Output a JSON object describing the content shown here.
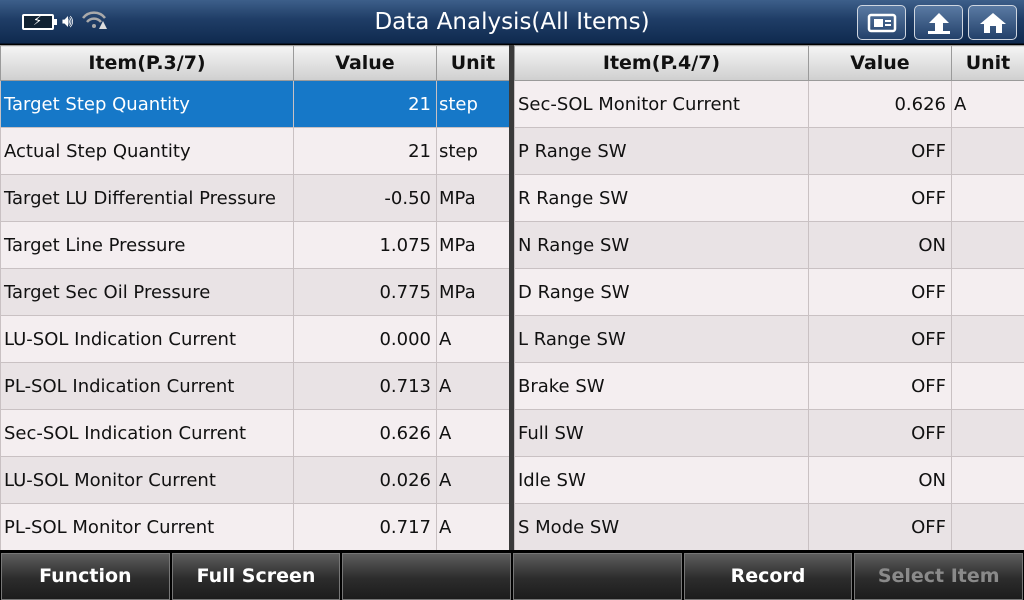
{
  "title": "Data Analysis(All Items)",
  "status_icons": [
    "battery-icon",
    "speaker-icon",
    "wifi-warning-icon"
  ],
  "toolbar_icons": [
    "screenshot-icon",
    "back-icon",
    "home-icon"
  ],
  "left_table": {
    "headers": {
      "item": "Item(P.3/7)",
      "value": "Value",
      "unit": "Unit"
    },
    "rows": [
      {
        "item": "Target Step Quantity",
        "value": "21",
        "unit": "step"
      },
      {
        "item": "Actual Step Quantity",
        "value": "21",
        "unit": "step"
      },
      {
        "item": "Target LU Differential Pressure",
        "value": "-0.50",
        "unit": "MPa"
      },
      {
        "item": "Target Line Pressure",
        "value": "1.075",
        "unit": "MPa"
      },
      {
        "item": "Target Sec Oil Pressure",
        "value": "0.775",
        "unit": "MPa"
      },
      {
        "item": "LU-SOL Indication Current",
        "value": "0.000",
        "unit": "A"
      },
      {
        "item": "PL-SOL Indication Current",
        "value": "0.713",
        "unit": "A"
      },
      {
        "item": "Sec-SOL Indication Current",
        "value": "0.626",
        "unit": "A"
      },
      {
        "item": "LU-SOL Monitor Current",
        "value": "0.026",
        "unit": "A"
      },
      {
        "item": "PL-SOL Monitor Current",
        "value": "0.717",
        "unit": "A"
      }
    ]
  },
  "right_table": {
    "headers": {
      "item": "Item(P.4/7)",
      "value": "Value",
      "unit": "Unit"
    },
    "rows": [
      {
        "item": "Sec-SOL Monitor Current",
        "value": "0.626",
        "unit": "A"
      },
      {
        "item": "P Range SW",
        "value": "OFF",
        "unit": ""
      },
      {
        "item": "R Range SW",
        "value": "OFF",
        "unit": ""
      },
      {
        "item": "N Range SW",
        "value": "ON",
        "unit": ""
      },
      {
        "item": "D Range SW",
        "value": "OFF",
        "unit": ""
      },
      {
        "item": "L Range SW",
        "value": "OFF",
        "unit": ""
      },
      {
        "item": "Brake SW",
        "value": "OFF",
        "unit": ""
      },
      {
        "item": "Full SW",
        "value": "OFF",
        "unit": ""
      },
      {
        "item": "Idle SW",
        "value": "ON",
        "unit": ""
      },
      {
        "item": "S Mode SW",
        "value": "OFF",
        "unit": ""
      }
    ]
  },
  "bottom_buttons": {
    "function": "Function",
    "full_screen": "Full Screen",
    "blank1": "",
    "blank2": "",
    "record": "Record",
    "select_item": "Select Item"
  },
  "colors": {
    "selected_row": "#1678c8",
    "title_bar": "#1f3d66"
  }
}
